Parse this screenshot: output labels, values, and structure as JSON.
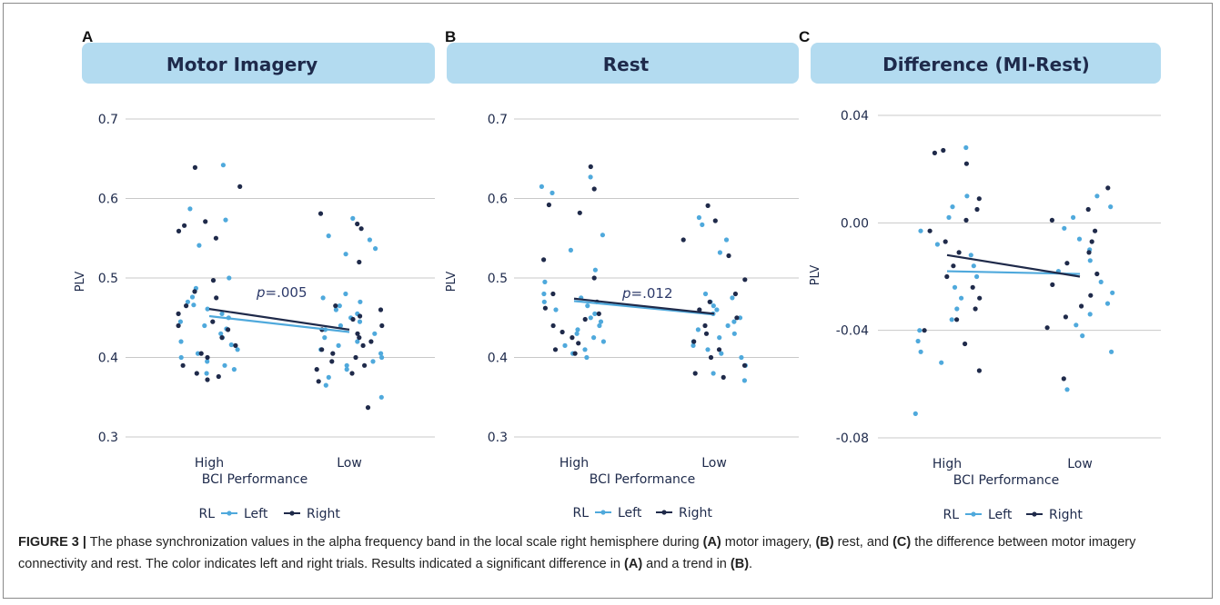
{
  "panels": [
    {
      "letter": "A",
      "title": "Motor Imagery",
      "annotation": "p=.005",
      "ylabel": "PLV",
      "xlabel": "BCI Performance",
      "legend": {
        "title": "RL",
        "left": "Left",
        "right": "Right"
      }
    },
    {
      "letter": "B",
      "title": "Rest",
      "annotation": "p=.012",
      "ylabel": "PLV",
      "xlabel": "BCI Performance",
      "legend": {
        "title": "RL",
        "left": "Left",
        "right": "Right"
      }
    },
    {
      "letter": "C",
      "title": "Difference (MI-Rest)",
      "annotation": "",
      "ylabel": "PLV",
      "xlabel": "BCI Performance",
      "legend": {
        "title": "RL",
        "left": "Left",
        "right": "Right"
      }
    }
  ],
  "colors": {
    "left": "#4fa9dc",
    "right": "#1f2a4a",
    "header_bg": "#b3dbf0",
    "header_text": "#1e2a4b",
    "grid": "#c8c8c8"
  },
  "caption": {
    "label": "FIGURE 3 |",
    "segments": [
      {
        "t": " The phase synchronization values in the alpha frequency band in the local scale right hemisphere during ",
        "b": false
      },
      {
        "t": "(A)",
        "b": true
      },
      {
        "t": " motor imagery, ",
        "b": false
      },
      {
        "t": "(B)",
        "b": true
      },
      {
        "t": " rest, and ",
        "b": false
      },
      {
        "t": "(C)",
        "b": true
      },
      {
        "t": " the difference between motor imagery connectivity and rest. The color indicates left and right trials. Results indicated a significant difference in ",
        "b": false
      },
      {
        "t": "(A)",
        "b": true
      },
      {
        "t": " and a trend in ",
        "b": false
      },
      {
        "t": "(B)",
        "b": true
      },
      {
        "t": ".",
        "b": false
      }
    ]
  },
  "chart_data": [
    {
      "type": "scatter",
      "title": "Motor Imagery",
      "xlabel": "BCI Performance",
      "ylabel": "PLV",
      "categories": [
        "High",
        "Low"
      ],
      "ylim": [
        0.3,
        0.7
      ],
      "yticks": [
        0.3,
        0.4,
        0.5,
        0.6,
        0.7
      ],
      "ytick_labels": [
        "0.3",
        "0.4",
        "0.5",
        "0.6",
        "0.7"
      ],
      "grid": true,
      "legend_position": "bottom",
      "series": [
        {
          "name": "Left",
          "means": [
            0.452,
            0.432
          ],
          "points": {
            "High": [
              0.642,
              0.587,
              0.573,
              0.541,
              0.5,
              0.487,
              0.476,
              0.47,
              0.466,
              0.461,
              0.455,
              0.45,
              0.445,
              0.44,
              0.436,
              0.43,
              0.425,
              0.42,
              0.416,
              0.41,
              0.405,
              0.4,
              0.395,
              0.39,
              0.385,
              0.38
            ],
            "Low": [
              0.575,
              0.553,
              0.548,
              0.537,
              0.53,
              0.48,
              0.475,
              0.47,
              0.465,
              0.46,
              0.455,
              0.45,
              0.445,
              0.44,
              0.435,
              0.43,
              0.425,
              0.42,
              0.415,
              0.41,
              0.405,
              0.4,
              0.395,
              0.39,
              0.385,
              0.375,
              0.365,
              0.35
            ]
          }
        },
        {
          "name": "Right",
          "means": [
            0.461,
            0.435
          ],
          "points": {
            "High": [
              0.639,
              0.615,
              0.571,
              0.566,
              0.559,
              0.55,
              0.497,
              0.483,
              0.475,
              0.465,
              0.455,
              0.445,
              0.44,
              0.435,
              0.425,
              0.415,
              0.405,
              0.4,
              0.39,
              0.38,
              0.376,
              0.372
            ],
            "Low": [
              0.581,
              0.568,
              0.562,
              0.52,
              0.465,
              0.46,
              0.452,
              0.448,
              0.44,
              0.435,
              0.43,
              0.425,
              0.42,
              0.415,
              0.41,
              0.405,
              0.4,
              0.395,
              0.39,
              0.385,
              0.38,
              0.37,
              0.337
            ]
          }
        }
      ],
      "annotation": "p=.005"
    },
    {
      "type": "scatter",
      "title": "Rest",
      "xlabel": "BCI Performance",
      "ylabel": "PLV",
      "categories": [
        "High",
        "Low"
      ],
      "ylim": [
        0.3,
        0.7
      ],
      "yticks": [
        0.3,
        0.4,
        0.5,
        0.6,
        0.7
      ],
      "ytick_labels": [
        "0.3",
        "0.4",
        "0.5",
        "0.6",
        "0.7"
      ],
      "grid": true,
      "legend_position": "bottom",
      "series": [
        {
          "name": "Left",
          "means": [
            0.471,
            0.454
          ],
          "points": {
            "High": [
              0.627,
              0.615,
              0.607,
              0.554,
              0.535,
              0.51,
              0.495,
              0.48,
              0.475,
              0.47,
              0.465,
              0.46,
              0.455,
              0.45,
              0.445,
              0.44,
              0.435,
              0.43,
              0.425,
              0.42,
              0.415,
              0.41,
              0.405,
              0.4
            ],
            "Low": [
              0.576,
              0.567,
              0.548,
              0.532,
              0.48,
              0.475,
              0.47,
              0.465,
              0.46,
              0.455,
              0.45,
              0.445,
              0.44,
              0.435,
              0.43,
              0.425,
              0.42,
              0.415,
              0.41,
              0.405,
              0.4,
              0.39,
              0.38,
              0.371
            ]
          }
        },
        {
          "name": "Right",
          "means": [
            0.474,
            0.455
          ],
          "points": {
            "High": [
              0.64,
              0.612,
              0.592,
              0.582,
              0.523,
              0.5,
              0.48,
              0.47,
              0.462,
              0.455,
              0.448,
              0.44,
              0.432,
              0.425,
              0.418,
              0.41,
              0.405
            ],
            "Low": [
              0.591,
              0.572,
              0.548,
              0.528,
              0.498,
              0.48,
              0.47,
              0.46,
              0.45,
              0.44,
              0.43,
              0.42,
              0.41,
              0.4,
              0.39,
              0.38,
              0.375
            ]
          }
        }
      ],
      "annotation": "p=.012"
    },
    {
      "type": "scatter",
      "title": "Difference (MI-Rest)",
      "xlabel": "BCI Performance",
      "ylabel": "PLV",
      "categories": [
        "High",
        "Low"
      ],
      "ylim": [
        -0.08,
        0.04
      ],
      "yticks": [
        -0.08,
        -0.04,
        0.0,
        0.04
      ],
      "ytick_labels": [
        "-0.08",
        "-0.04",
        "0.00",
        "0.04"
      ],
      "grid": true,
      "legend_position": "bottom",
      "series": [
        {
          "name": "Left",
          "means": [
            -0.018,
            -0.019
          ],
          "points": {
            "High": [
              0.028,
              0.01,
              0.006,
              0.002,
              -0.003,
              -0.008,
              -0.012,
              -0.016,
              -0.02,
              -0.024,
              -0.028,
              -0.032,
              -0.036,
              -0.04,
              -0.044,
              -0.048,
              -0.052,
              -0.071
            ],
            "Low": [
              0.01,
              0.006,
              0.002,
              -0.002,
              -0.006,
              -0.01,
              -0.014,
              -0.018,
              -0.022,
              -0.026,
              -0.03,
              -0.034,
              -0.038,
              -0.042,
              -0.048,
              -0.062
            ]
          }
        },
        {
          "name": "Right",
          "means": [
            -0.012,
            -0.02
          ],
          "points": {
            "High": [
              0.027,
              0.026,
              0.022,
              0.009,
              0.005,
              0.001,
              -0.003,
              -0.007,
              -0.011,
              -0.016,
              -0.02,
              -0.024,
              -0.028,
              -0.032,
              -0.036,
              -0.04,
              -0.045,
              -0.055
            ],
            "Low": [
              0.013,
              0.005,
              0.001,
              -0.003,
              -0.007,
              -0.011,
              -0.015,
              -0.019,
              -0.023,
              -0.027,
              -0.031,
              -0.035,
              -0.039,
              -0.058
            ]
          }
        }
      ],
      "annotation": ""
    }
  ]
}
